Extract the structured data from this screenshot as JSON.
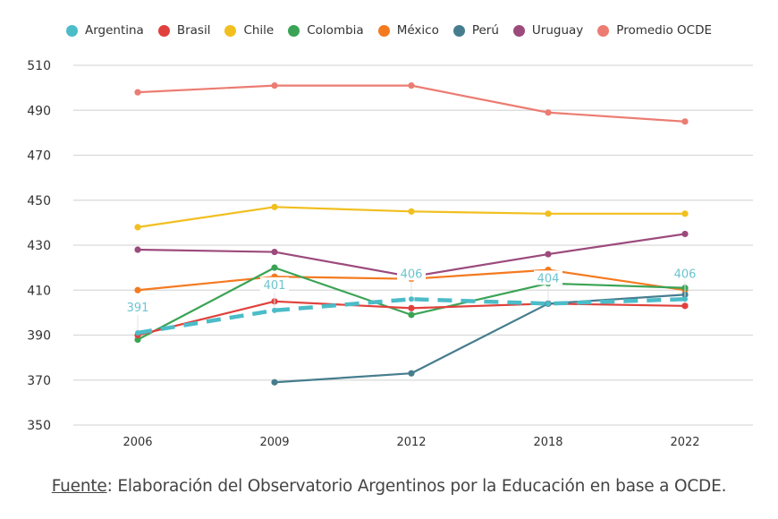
{
  "chart_data": {
    "type": "line",
    "title": "",
    "xlabel": "",
    "ylabel": "",
    "categories": [
      "2006",
      "2009",
      "2012",
      "2018",
      "2022"
    ],
    "ylim": [
      350,
      510
    ],
    "yticks": [
      350,
      370,
      390,
      410,
      430,
      450,
      470,
      490,
      510
    ],
    "grid": true,
    "legend_position": "top",
    "series": [
      {
        "name": "Argentina",
        "color": "#4bbcc8",
        "dashed": true,
        "values": [
          391,
          401,
          406,
          404,
          406
        ],
        "data_labels": [
          "391",
          "401",
          "406",
          "404",
          "406"
        ]
      },
      {
        "name": "Brasil",
        "color": "#e0413c",
        "dashed": false,
        "values": [
          390,
          405,
          402,
          404,
          403
        ]
      },
      {
        "name": "Chile",
        "color": "#f1bf1f",
        "dashed": false,
        "values": [
          438,
          447,
          445,
          444,
          444
        ]
      },
      {
        "name": "Colombia",
        "color": "#3aa355",
        "dashed": false,
        "values": [
          388,
          420,
          399,
          413,
          411
        ]
      },
      {
        "name": "México",
        "color": "#f47a1f",
        "dashed": false,
        "values": [
          410,
          416,
          415,
          419,
          410
        ]
      },
      {
        "name": "Perú",
        "color": "#467d8e",
        "dashed": false,
        "values": [
          null,
          369,
          373,
          404,
          408
        ]
      },
      {
        "name": "Uruguay",
        "color": "#9c4a7c",
        "dashed": false,
        "values": [
          428,
          427,
          416,
          426,
          435
        ]
      },
      {
        "name": "Promedio OCDE",
        "color": "#ec7c72",
        "dashed": false,
        "values": [
          498,
          501,
          501,
          489,
          485
        ]
      }
    ]
  },
  "footer": {
    "source_label": "Fuente",
    "source_text": ": Elaboración del Observatorio Argentinos por la Educación en base a OCDE."
  }
}
